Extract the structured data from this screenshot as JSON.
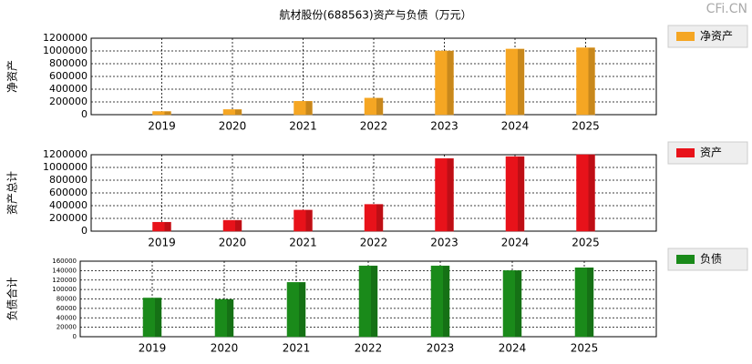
{
  "title": "航材股份(688563)资产与负债（万元）",
  "watermark": "CFi.CN",
  "chart_data": [
    {
      "type": "bar",
      "y_label": "净资产",
      "categories": [
        "2019",
        "2020",
        "2021",
        "2022",
        "2023",
        "2024",
        "2025"
      ],
      "series": [
        {
          "name": "净资产",
          "color": "#f5a623",
          "values": [
            50000,
            80000,
            210000,
            260000,
            1000000,
            1030000,
            1050000
          ]
        }
      ],
      "ylim": [
        0,
        1200000
      ],
      "yticks": [
        0,
        200000,
        400000,
        600000,
        800000,
        1000000,
        1200000
      ],
      "grid": true
    },
    {
      "type": "bar",
      "y_label": "资产总计",
      "categories": [
        "2019",
        "2020",
        "2021",
        "2022",
        "2023",
        "2024",
        "2025"
      ],
      "series": [
        {
          "name": "资产",
          "color": "#e8121a",
          "values": [
            140000,
            170000,
            330000,
            420000,
            1140000,
            1170000,
            1200000
          ]
        }
      ],
      "ylim": [
        0,
        1200000
      ],
      "yticks": [
        0,
        200000,
        400000,
        600000,
        800000,
        1000000,
        1200000
      ],
      "grid": true
    },
    {
      "type": "bar",
      "y_label": "负债合计",
      "categories": [
        "2019",
        "2020",
        "2021",
        "2022",
        "2023",
        "2024",
        "2025"
      ],
      "series": [
        {
          "name": "负债",
          "color": "#1a8a1a",
          "values": [
            82000,
            79000,
            115000,
            150000,
            150000,
            140000,
            146000
          ]
        }
      ],
      "ylim": [
        0,
        160000
      ],
      "yticks": [
        0,
        20000,
        40000,
        60000,
        80000,
        100000,
        120000,
        140000,
        160000
      ],
      "grid": true
    }
  ]
}
